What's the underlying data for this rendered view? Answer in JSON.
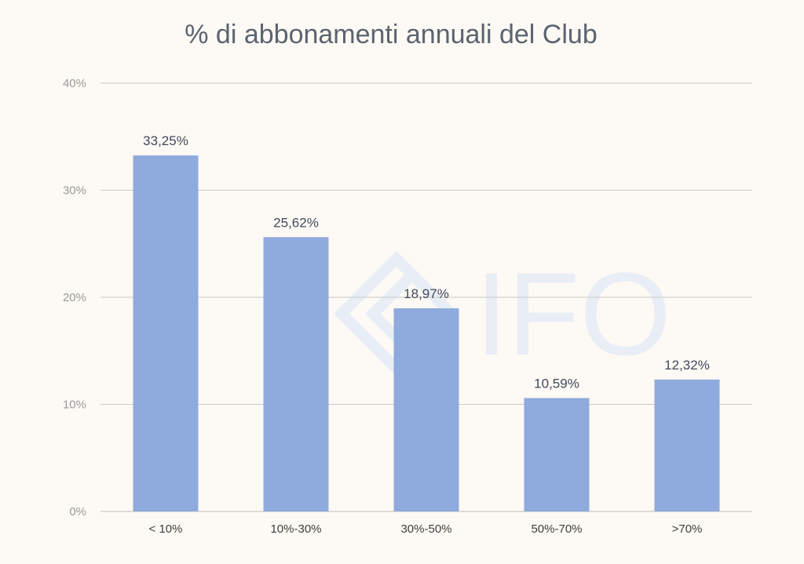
{
  "chart_data": {
    "type": "bar",
    "title": "% di abbonamenti annuali del Club",
    "xlabel": "",
    "ylabel": "",
    "categories": [
      "< 10%",
      "10%-30%",
      "30%-50%",
      "50%-70%",
      ">70%"
    ],
    "values": [
      33.25,
      25.62,
      18.97,
      10.59,
      12.32
    ],
    "data_labels": [
      "33,25%",
      "25,62%",
      "18,97%",
      "10,59%",
      "12,32%"
    ],
    "ylim": [
      0,
      40
    ],
    "yticks": [
      0,
      10,
      20,
      30,
      40
    ],
    "ytick_labels": [
      "0%",
      "10%",
      "20%",
      "30%",
      "40%"
    ],
    "grid": true,
    "legend": "none",
    "bar_color": "#8faadc"
  },
  "watermark": {
    "text": "IFO"
  }
}
